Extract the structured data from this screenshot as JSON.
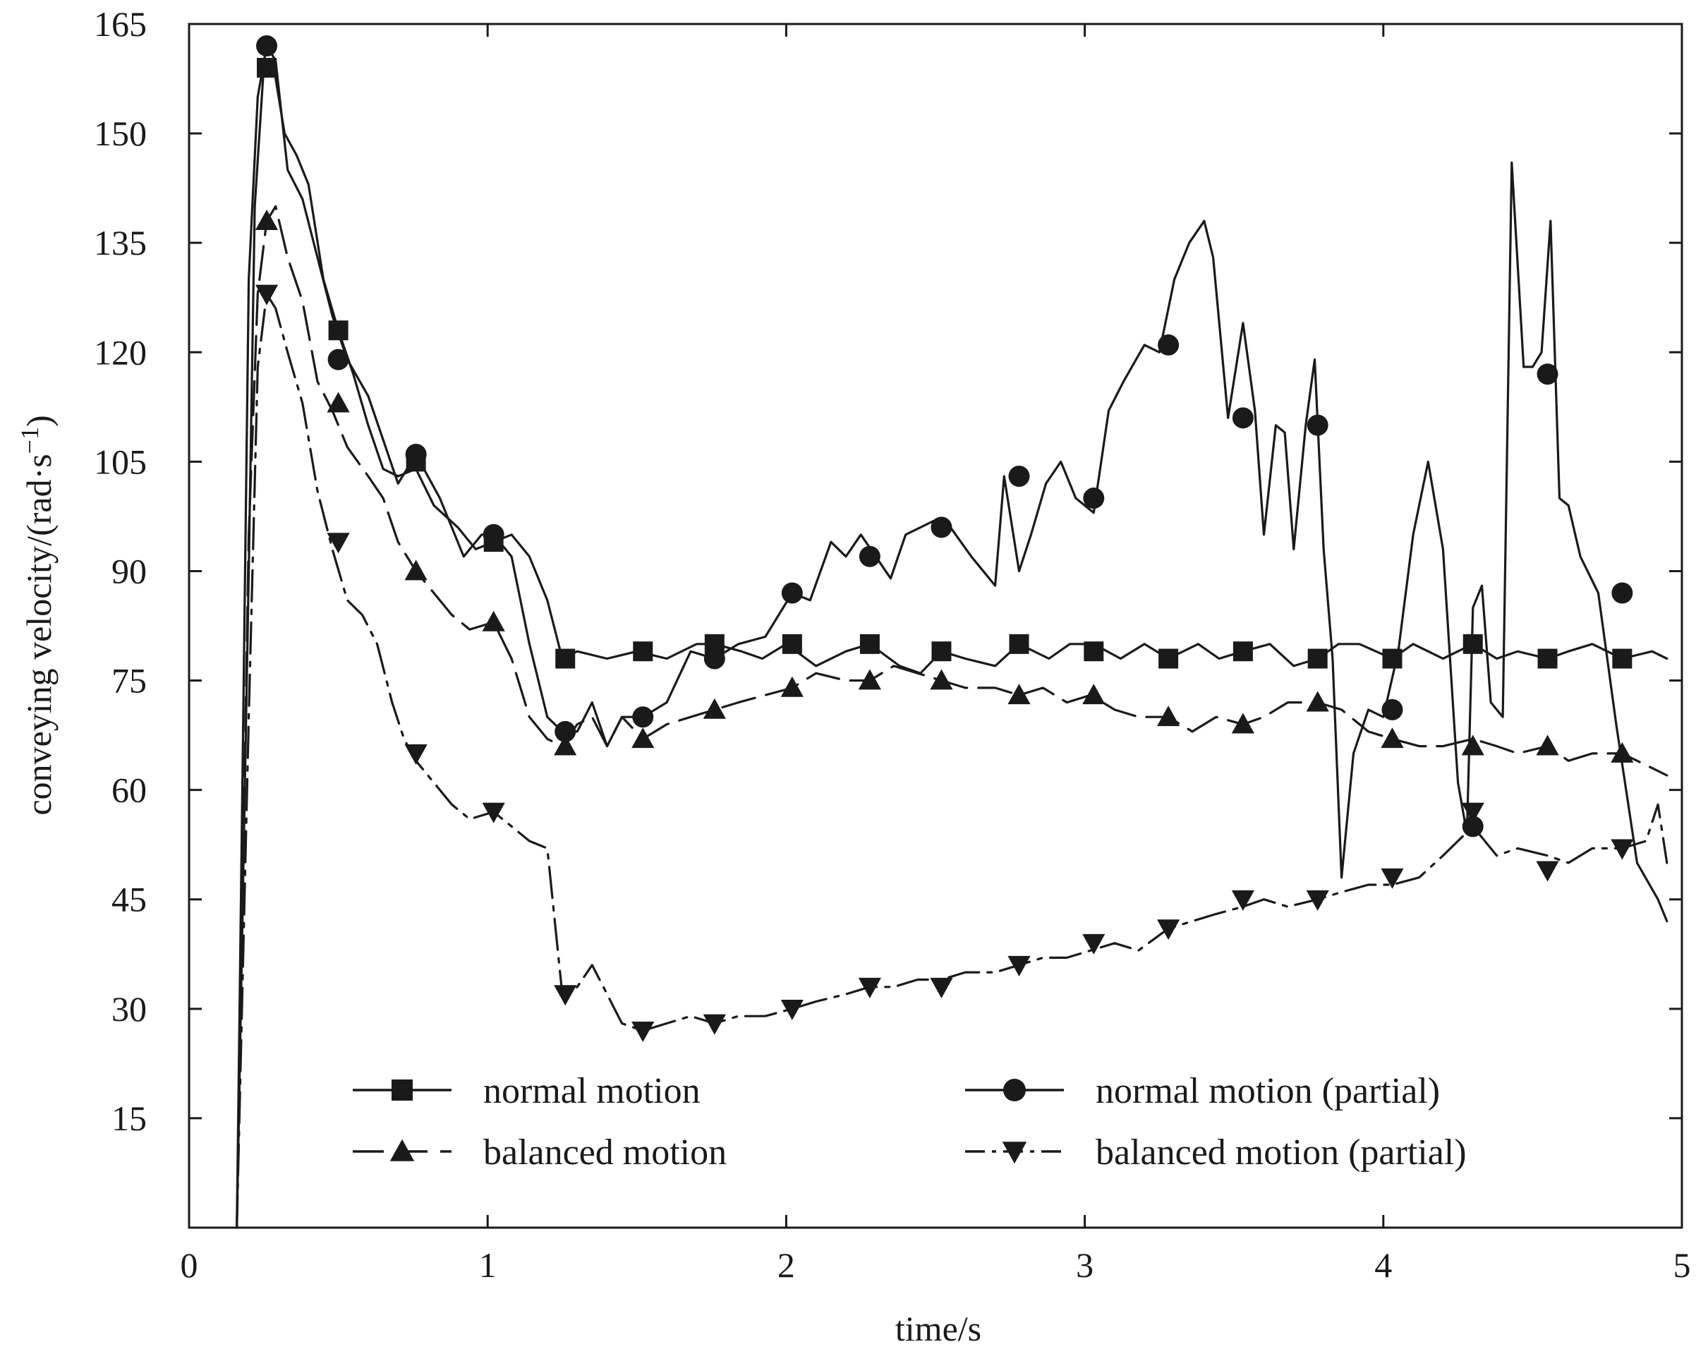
{
  "chart_data": {
    "type": "line",
    "xlabel": "time/s",
    "ylabel": "conveying velocity/(rad·s",
    "ylabel_superscript": "−1",
    "ylabel_suffix": ")",
    "xlim": [
      0,
      5
    ],
    "ylim": [
      0,
      165
    ],
    "x_ticks": [
      0,
      1,
      2,
      3,
      4,
      5
    ],
    "y_ticks": [
      15,
      30,
      45,
      60,
      75,
      90,
      105,
      120,
      135,
      150,
      165
    ],
    "x_tick_labels": [
      "0",
      "1",
      "2",
      "3",
      "4",
      "5"
    ],
    "y_tick_labels": [
      "15",
      "30",
      "45",
      "60",
      "75",
      "90",
      "105",
      "120",
      "135",
      "150",
      "165"
    ],
    "grid": false,
    "legend_position": "bottom",
    "colors": {
      "line": "#1a1a1a",
      "background": "#ffffff"
    },
    "series": [
      {
        "name": "normal motion",
        "marker": "square",
        "dash": "solid",
        "x": [
          0.16,
          0.2,
          0.22,
          0.25,
          0.28,
          0.32,
          0.36,
          0.4,
          0.45,
          0.5,
          0.55,
          0.6,
          0.65,
          0.7,
          0.76,
          0.82,
          0.9,
          0.96,
          1.02,
          1.08,
          1.14,
          1.2,
          1.25,
          1.3,
          1.4,
          1.5,
          1.6,
          1.7,
          1.76,
          1.85,
          1.92,
          2.0,
          2.1,
          2.2,
          2.28,
          2.38,
          2.45,
          2.52,
          2.6,
          2.7,
          2.78,
          2.88,
          2.95,
          3.03,
          3.12,
          3.2,
          3.28,
          3.38,
          3.45,
          3.53,
          3.62,
          3.7,
          3.78,
          3.85,
          3.92,
          4.03,
          4.1,
          4.2,
          4.3,
          4.38,
          4.45,
          4.55,
          4.62,
          4.7,
          4.8,
          4.9,
          4.95
        ],
        "y": [
          0,
          90,
          140,
          159,
          160,
          150,
          147,
          143,
          130,
          123,
          117,
          110,
          104,
          103,
          104,
          99,
          96,
          93,
          94,
          95,
          92,
          86,
          78,
          79,
          78,
          79,
          78,
          80,
          80,
          79,
          78,
          80,
          77,
          79,
          80,
          77,
          76,
          79,
          78,
          77,
          80,
          78,
          80,
          80,
          78,
          80,
          78,
          80,
          78,
          79,
          80,
          77,
          78,
          80,
          80,
          78,
          80,
          78,
          80,
          78,
          79,
          78,
          79,
          80,
          78,
          79,
          78
        ]
      },
      {
        "name": "normal motion (partial)",
        "marker": "circle",
        "dash": "solid",
        "x": [
          0.16,
          0.2,
          0.23,
          0.26,
          0.29,
          0.33,
          0.38,
          0.43,
          0.48,
          0.53,
          0.6,
          0.65,
          0.7,
          0.76,
          0.84,
          0.92,
          0.98,
          1.02,
          1.08,
          1.14,
          1.2,
          1.25,
          1.3,
          1.35,
          1.4,
          1.45,
          1.52,
          1.6,
          1.68,
          1.76,
          1.84,
          1.93,
          2.02,
          2.08,
          2.15,
          2.2,
          2.25,
          2.3,
          2.35,
          2.4,
          2.45,
          2.5,
          2.55,
          2.62,
          2.7,
          2.73,
          2.78,
          2.82,
          2.87,
          2.92,
          2.97,
          3.03,
          3.08,
          3.13,
          3.2,
          3.25,
          3.3,
          3.35,
          3.4,
          3.43,
          3.48,
          3.53,
          3.57,
          3.6,
          3.64,
          3.67,
          3.7,
          3.74,
          3.77,
          3.8,
          3.83,
          3.86,
          3.9,
          3.95,
          4.0,
          4.05,
          4.1,
          4.15,
          4.2,
          4.25,
          4.28,
          4.3,
          4.33,
          4.36,
          4.4,
          4.43,
          4.47,
          4.5,
          4.53,
          4.56,
          4.59,
          4.62,
          4.66,
          4.72,
          4.78,
          4.85,
          4.92,
          4.95
        ],
        "y": [
          0,
          130,
          155,
          162,
          160,
          145,
          141,
          133,
          125,
          119,
          114,
          108,
          102,
          106,
          100,
          92,
          95,
          95,
          92,
          80,
          70,
          68,
          68,
          72,
          66,
          70,
          70,
          72,
          79,
          78,
          80,
          81,
          87,
          86,
          94,
          92,
          95,
          92,
          89,
          95,
          96,
          97,
          96,
          92,
          88,
          103,
          90,
          95,
          102,
          105,
          100,
          98,
          112,
          116,
          121,
          120,
          130,
          135,
          138,
          133,
          111,
          124,
          112,
          95,
          110,
          109,
          93,
          110,
          119,
          93,
          78,
          48,
          65,
          71,
          70,
          79,
          95,
          105,
          93,
          61,
          54,
          85,
          88,
          72,
          70,
          146,
          118,
          118,
          120,
          138,
          100,
          99,
          92,
          87,
          69,
          50,
          45,
          42
        ]
      },
      {
        "name": "balanced motion",
        "marker": "triangle-up",
        "dash": "longdash",
        "x": [
          0.16,
          0.2,
          0.23,
          0.26,
          0.29,
          0.33,
          0.38,
          0.43,
          0.48,
          0.53,
          0.6,
          0.65,
          0.7,
          0.76,
          0.82,
          0.88,
          0.94,
          1.02,
          1.08,
          1.14,
          1.2,
          1.25,
          1.3,
          1.35,
          1.4,
          1.45,
          1.52,
          1.6,
          1.68,
          1.76,
          1.84,
          1.93,
          2.02,
          2.1,
          2.2,
          2.28,
          2.36,
          2.44,
          2.52,
          2.6,
          2.7,
          2.78,
          2.86,
          2.94,
          3.02,
          3.1,
          3.18,
          3.28,
          3.36,
          3.44,
          3.53,
          3.6,
          3.68,
          3.78,
          3.86,
          3.95,
          4.03,
          4.12,
          4.2,
          4.3,
          4.38,
          4.45,
          4.55,
          4.62,
          4.7,
          4.8,
          4.9,
          4.95
        ],
        "y": [
          0,
          95,
          128,
          138,
          140,
          133,
          127,
          116,
          112,
          107,
          103,
          100,
          94,
          90,
          87,
          84,
          82,
          83,
          78,
          70,
          67,
          66,
          69,
          70,
          66,
          70,
          67,
          69,
          70,
          71,
          72,
          73,
          74,
          76,
          75,
          75,
          77,
          76,
          75,
          74,
          74,
          73,
          74,
          72,
          73,
          71,
          70,
          70,
          68,
          70,
          69,
          70,
          72,
          72,
          71,
          68,
          67,
          66,
          66,
          67,
          66,
          65,
          66,
          64,
          65,
          65,
          63,
          62
        ]
      },
      {
        "name": "balanced motion (partial)",
        "marker": "triangle-down",
        "dash": "dashdot",
        "x": [
          0.16,
          0.2,
          0.23,
          0.26,
          0.29,
          0.33,
          0.38,
          0.43,
          0.48,
          0.53,
          0.58,
          0.63,
          0.68,
          0.72,
          0.76,
          0.82,
          0.88,
          0.94,
          1.02,
          1.08,
          1.14,
          1.2,
          1.25,
          1.3,
          1.35,
          1.4,
          1.45,
          1.52,
          1.6,
          1.68,
          1.76,
          1.84,
          1.93,
          2.02,
          2.1,
          2.2,
          2.28,
          2.36,
          2.44,
          2.52,
          2.6,
          2.7,
          2.78,
          2.86,
          2.94,
          3.02,
          3.1,
          3.18,
          3.28,
          3.36,
          3.44,
          3.53,
          3.6,
          3.68,
          3.78,
          3.86,
          3.95,
          4.03,
          4.12,
          4.2,
          4.3,
          4.38,
          4.45,
          4.55,
          4.62,
          4.7,
          4.8,
          4.88,
          4.92,
          4.95
        ],
        "y": [
          0,
          70,
          118,
          128,
          126,
          120,
          113,
          101,
          93,
          86,
          84,
          80,
          72,
          67,
          64,
          61,
          58,
          56,
          57,
          55,
          53,
          52,
          32,
          33,
          36,
          32,
          28,
          27,
          28,
          29,
          28,
          29,
          29,
          30,
          31,
          32,
          33,
          33,
          34,
          34,
          35,
          35,
          36,
          37,
          37,
          38,
          39,
          38,
          41,
          42,
          43,
          44,
          45,
          44,
          45,
          46,
          47,
          47,
          48,
          51,
          55,
          51,
          52,
          51,
          50,
          52,
          52,
          53,
          58,
          50
        ]
      }
    ],
    "marker_points": [
      {
        "series": 0,
        "x": [
          0.26,
          0.5,
          0.76,
          1.02,
          1.26,
          1.52,
          1.76,
          2.02,
          2.28,
          2.52,
          2.78,
          3.03,
          3.28,
          3.53,
          3.78,
          4.03,
          4.3,
          4.55,
          4.8
        ],
        "y": [
          159,
          123,
          105,
          94,
          78,
          79,
          80,
          80,
          80,
          79,
          80,
          79,
          78,
          79,
          78,
          78,
          80,
          78,
          78
        ]
      },
      {
        "series": 1,
        "x": [
          0.26,
          0.5,
          0.76,
          1.02,
          1.26,
          1.52,
          1.76,
          2.02,
          2.28,
          2.52,
          2.78,
          3.03,
          3.28,
          3.53,
          3.78,
          4.03,
          4.3,
          4.55,
          4.8
        ],
        "y": [
          162,
          119,
          106,
          95,
          68,
          70,
          78,
          87,
          92,
          96,
          103,
          100,
          121,
          111,
          110,
          71,
          55,
          117,
          87
        ]
      },
      {
        "series": 2,
        "x": [
          0.26,
          0.5,
          0.76,
          1.02,
          1.26,
          1.52,
          1.76,
          2.02,
          2.28,
          2.52,
          2.78,
          3.03,
          3.28,
          3.53,
          3.78,
          4.03,
          4.3,
          4.55,
          4.8
        ],
        "y": [
          138,
          113,
          90,
          83,
          66,
          67,
          71,
          74,
          75,
          75,
          73,
          73,
          70,
          69,
          72,
          67,
          66,
          66,
          65
        ]
      },
      {
        "series": 3,
        "x": [
          0.26,
          0.5,
          0.76,
          1.02,
          1.26,
          1.52,
          1.76,
          2.02,
          2.28,
          2.52,
          2.78,
          3.03,
          3.28,
          3.53,
          3.78,
          4.03,
          4.3,
          4.55,
          4.8
        ],
        "y": [
          128,
          94,
          65,
          57,
          32,
          27,
          28,
          30,
          33,
          33,
          36,
          39,
          41,
          45,
          45,
          48,
          57,
          49,
          52
        ]
      }
    ]
  }
}
